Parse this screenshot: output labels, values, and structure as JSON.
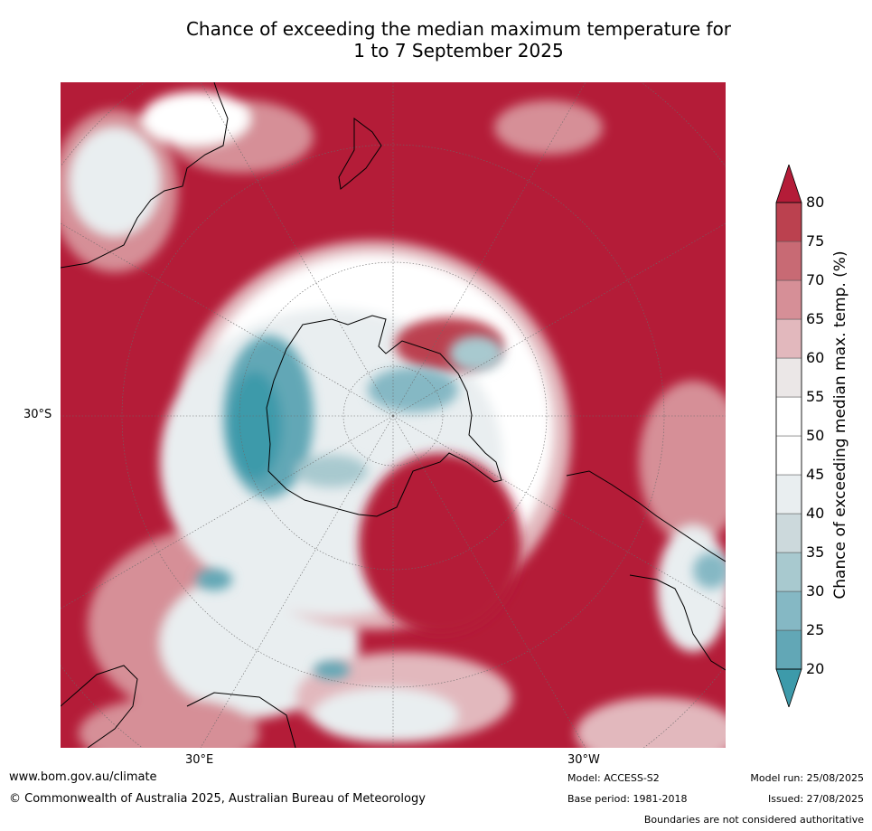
{
  "title": {
    "line1": "Chance of exceeding the median maximum temperature for",
    "line2": "1 to 7 September 2025"
  },
  "map": {
    "projection": "south-polar stereographic",
    "lat_label": "30°S",
    "lon_labels": [
      "30°E",
      "30°W"
    ]
  },
  "colorbar": {
    "label": "Chance of exceeding median max. temp. (%)",
    "ticks": [
      "20",
      "25",
      "30",
      "35",
      "40",
      "45",
      "50",
      "55",
      "60",
      "65",
      "70",
      "75",
      "80"
    ],
    "colors": [
      "#3d9aaa",
      "#62a7b6",
      "#85b8c4",
      "#a8c9cf",
      "#ccd9dc",
      "#e9eef0",
      "#ffffff",
      "#ffffff",
      "#ebe7e7",
      "#e2b8bd",
      "#d68f97",
      "#c86a74",
      "#bb414f",
      "#b41c38"
    ],
    "extend_low_color": "#3d9aaa",
    "extend_high_color": "#b41c38"
  },
  "footer": {
    "website": "www.bom.gov.au/climate",
    "copyright": "© Commonwealth of Australia 2025, Australian Bureau of Meteorology",
    "model": "Model: ACCESS-S2",
    "base_period": "Base period: 1981-2018",
    "model_run": "Model run: 25/08/2025",
    "issued": "Issued: 27/08/2025",
    "disclaimer": "Boundaries are not considered authoritative"
  }
}
